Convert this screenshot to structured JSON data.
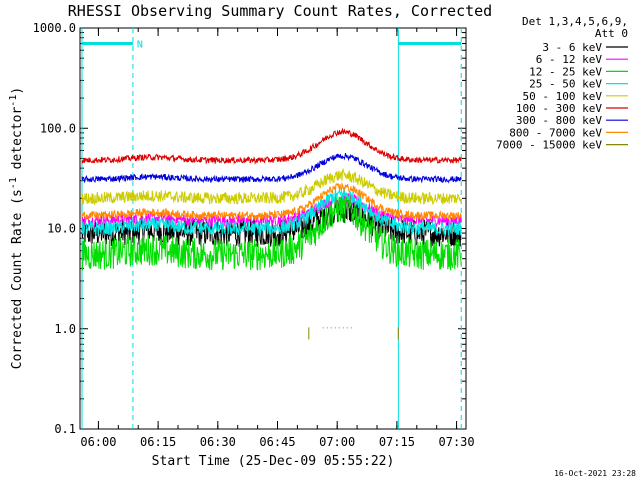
{
  "chart_data": {
    "type": "line",
    "title": "RHESSI Observing Summary Count Rates, Corrected",
    "xlabel": "Start Time (25-Dec-09 05:55:22)",
    "ylabel_main": "Corrected Count Rate (s",
    "ylabel_sup": "-1",
    "ylabel_mid": " detector",
    "ylabel_end": ")",
    "ylog": true,
    "ylim": [
      0.1,
      1000
    ],
    "xlim_minutes": [
      0,
      97
    ],
    "x_ticks": [
      {
        "label": "06:00",
        "min": 4.63
      },
      {
        "label": "06:15",
        "min": 19.63
      },
      {
        "label": "06:30",
        "min": 34.63
      },
      {
        "label": "06:45",
        "min": 49.63
      },
      {
        "label": "07:00",
        "min": 64.63
      },
      {
        "label": "07:15",
        "min": 79.63
      },
      {
        "label": "07:30",
        "min": 94.63
      }
    ],
    "y_ticks": [
      {
        "label": "0.1",
        "value": 0.1
      },
      {
        "label": "1.0",
        "value": 1
      },
      {
        "label": "10.0",
        "value": 10
      },
      {
        "label": "100.0",
        "value": 100
      },
      {
        "label": "1000.0",
        "value": 1000
      }
    ],
    "legend_header": [
      "Det 1,3,4,5,6,9,",
      "Att 0"
    ],
    "legend_position": "top-right outside",
    "series": [
      {
        "name": "3 - 6 keV",
        "color": "#000000",
        "base": 9.0,
        "peak": 15.5,
        "noise": 0.14
      },
      {
        "name": "6 - 12 keV",
        "color": "#ff00ff",
        "base": 12.0,
        "peak": 20.0,
        "noise": 0.06
      },
      {
        "name": "12 - 25 keV",
        "color": "#00dd00",
        "base": 5.5,
        "peak": 16.0,
        "noise": 0.16
      },
      {
        "name": "25 - 50 keV",
        "color": "#00e5e5",
        "base": 10.0,
        "peak": 22.0,
        "noise": 0.07
      },
      {
        "name": "50 - 100 keV",
        "color": "#cccc00",
        "base": 20.0,
        "peak": 34.0,
        "noise": 0.06
      },
      {
        "name": "100 - 300 keV",
        "color": "#dd0000",
        "base": 48.0,
        "peak": 92.0,
        "noise": 0.03
      },
      {
        "name": "300 - 800 keV",
        "color": "#0000dd",
        "base": 31.0,
        "peak": 53.0,
        "noise": 0.03
      },
      {
        "name": "800 - 7000 keV",
        "color": "#ff8800",
        "base": 13.5,
        "peak": 26.0,
        "noise": 0.04
      },
      {
        "name": "7000 - 15000 keV",
        "color": "#888800",
        "base": 0.9,
        "peak": 0.9,
        "noise": 0.0
      }
    ],
    "flags": {
      "night_bar_label": "N",
      "night_bars": [
        [
          0.5,
          13.3
        ],
        [
          80.0,
          95.8
        ]
      ],
      "night_bar_value": 700,
      "saa_dashed_lines_min": [
        13.3,
        95.8
      ],
      "night_edge_lines_min": [
        0.5,
        80.0
      ],
      "night_edge_color": "#00dddd"
    }
  },
  "footer": {
    "timestamp": "16-Oct-2021 23:28"
  }
}
